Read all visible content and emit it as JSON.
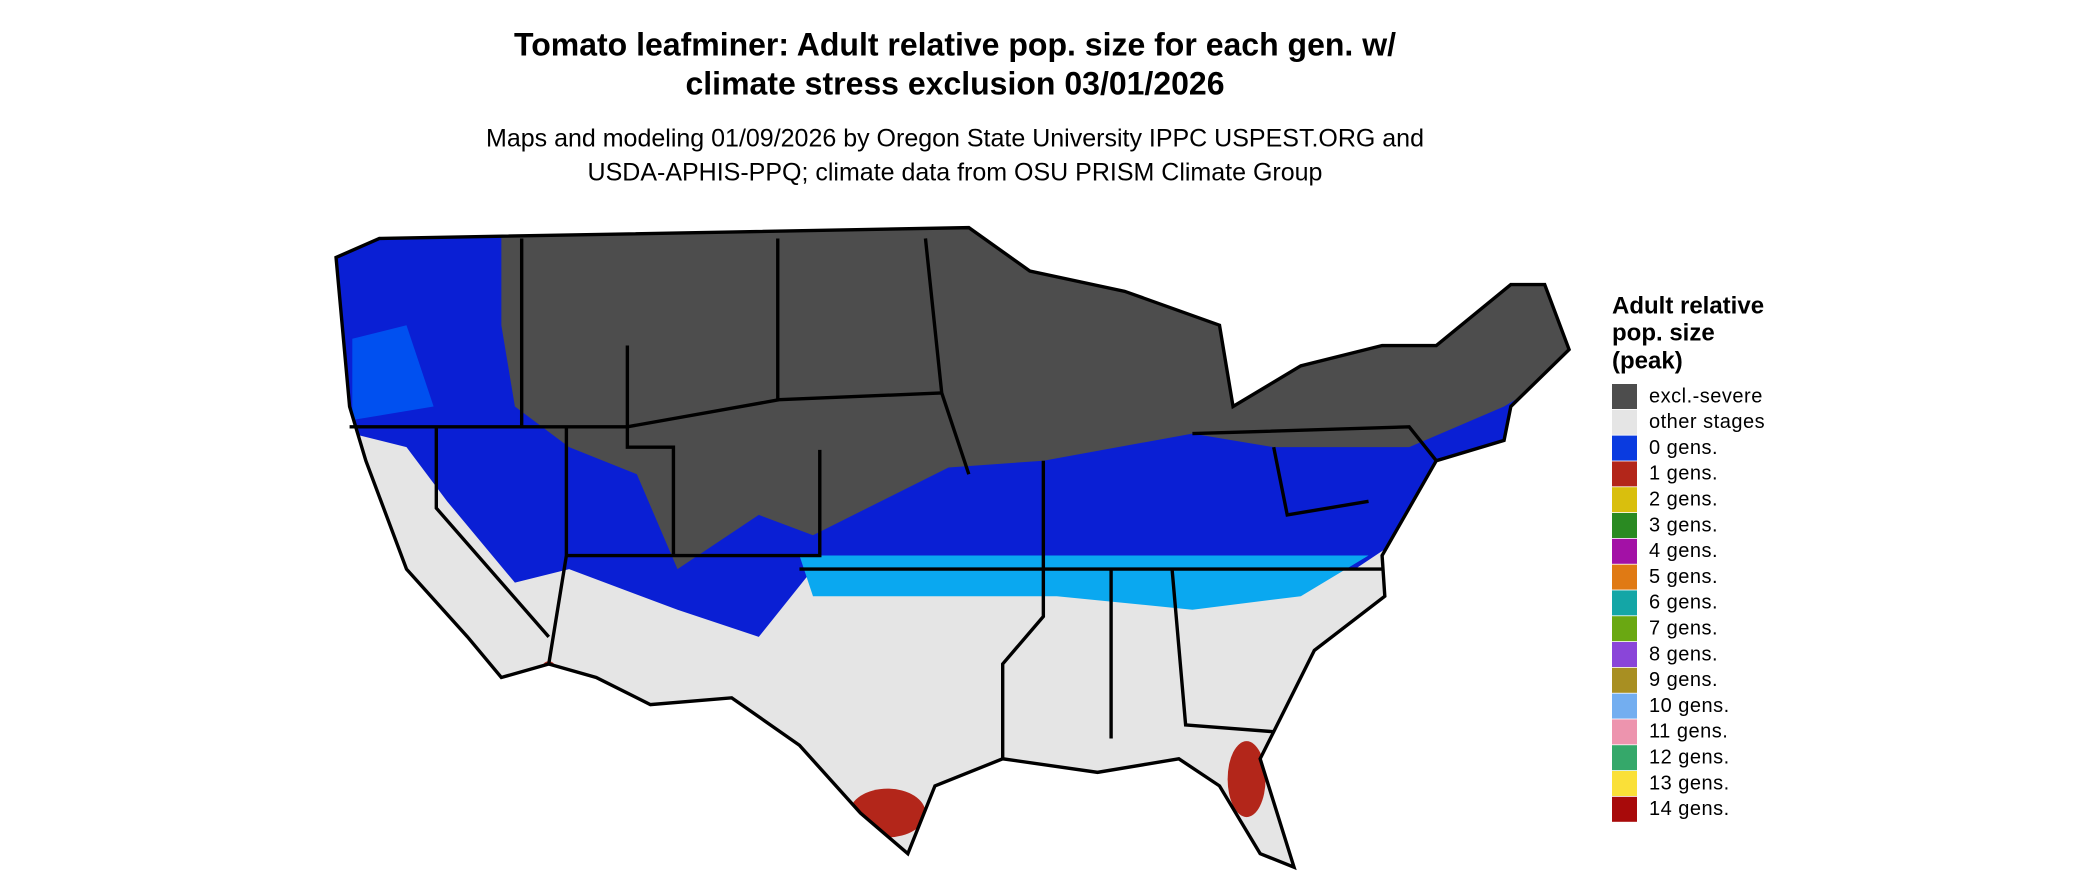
{
  "header": {
    "title": [
      "Tomato leafminer: Adult relative pop. size for each gen. w/",
      "climate stress exclusion 03/01/2026"
    ],
    "subtitle": [
      "Maps and modeling 01/09/2026 by Oregon State University IPPC USPEST.ORG and",
      "USDA-APHIS-PPQ; climate data from OSU PRISM Climate Group"
    ]
  },
  "legend": {
    "title": [
      "Adult relative",
      "pop. size",
      "(peak)"
    ],
    "items": [
      {
        "label": "excl.-severe",
        "color": "#4d4d4d"
      },
      {
        "label": "other stages",
        "color": "#e5e5e5"
      },
      {
        "label": "0 gens.",
        "color": "#0a3be0"
      },
      {
        "label": "1 gens.",
        "color": "#b3261a"
      },
      {
        "label": "2 gens.",
        "color": "#d9bf0d"
      },
      {
        "label": "3 gens.",
        "color": "#2a8a22"
      },
      {
        "label": "4 gens.",
        "color": "#a311a6"
      },
      {
        "label": "5 gens.",
        "color": "#e07a14"
      },
      {
        "label": "6 gens.",
        "color": "#14a6a6"
      },
      {
        "label": "7 gens.",
        "color": "#6aa812"
      },
      {
        "label": "8 gens.",
        "color": "#8a45d9"
      },
      {
        "label": "9 gens.",
        "color": "#a88f22"
      },
      {
        "label": "10 gens.",
        "color": "#73aef0"
      },
      {
        "label": "11 gens.",
        "color": "#ed94ae"
      },
      {
        "label": "12 gens.",
        "color": "#35a86a"
      },
      {
        "label": "13 gens.",
        "color": "#fae038"
      },
      {
        "label": "14 gens.",
        "color": "#a80a0a"
      }
    ]
  }
}
